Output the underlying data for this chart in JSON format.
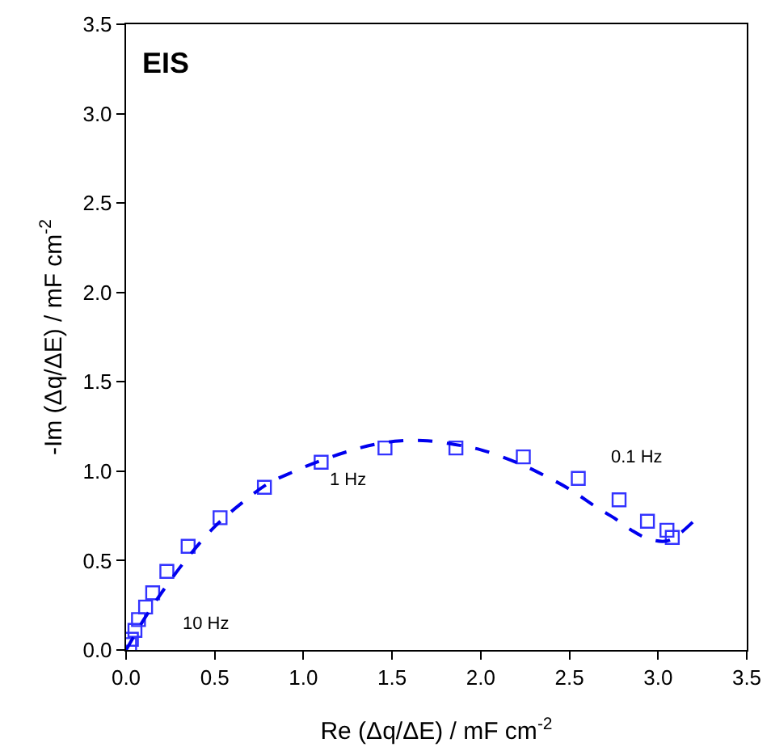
{
  "chart_data": {
    "type": "scatter",
    "title": "EIS",
    "xlabel": "Re (Δq/ΔE) / mF cm$^{-2}$",
    "ylabel": "-Im (Δq/ΔE) / mF cm$^{-2}$",
    "xlim": [
      0,
      3.5
    ],
    "ylim": [
      0,
      3.5
    ],
    "xticks": [
      {
        "value": 0,
        "label": "0.0"
      },
      0.5,
      {
        "value": 1,
        "label": "1.0"
      },
      1.5,
      {
        "value": 2,
        "label": "2.0"
      },
      2.5,
      {
        "value": 3,
        "label": "3.0"
      },
      3.5
    ],
    "yticks": [
      {
        "value": 0,
        "label": "0.0"
      },
      0.5,
      {
        "value": 1,
        "label": "1.0"
      },
      1.5,
      {
        "value": 2,
        "label": "2.0"
      },
      2.5,
      {
        "value": 3,
        "label": "3.0"
      },
      3.5
    ],
    "grid": false,
    "legend": false,
    "series": [
      {
        "marker": "square",
        "color": "#3333ff",
        "x": [
          0.02,
          0.03,
          0.05,
          0.07,
          0.11,
          0.15,
          0.23,
          0.35,
          0.53,
          0.78,
          1.1,
          1.46,
          1.86,
          2.24,
          2.55,
          2.78,
          2.94,
          3.05,
          3.08
        ],
        "values": [
          0.03,
          0.06,
          0.11,
          0.17,
          0.24,
          0.32,
          0.44,
          0.58,
          0.74,
          0.91,
          1.05,
          1.13,
          1.13,
          1.08,
          0.96,
          0.84,
          0.72,
          0.67,
          0.63
        ]
      },
      {
        "type": "line",
        "line_style": "dashed",
        "color": "#0000ee",
        "x": [
          0,
          0.1,
          0.2,
          0.35,
          0.5,
          0.65,
          0.8,
          0.95,
          1.1,
          1.25,
          1.4,
          1.55,
          1.7,
          1.85,
          2.0,
          2.2,
          2.35,
          2.5,
          2.65,
          2.75,
          2.85,
          2.95,
          3.05,
          3.12,
          3.2
        ],
        "values": [
          0,
          0.17,
          0.32,
          0.52,
          0.69,
          0.82,
          0.93,
          1.0,
          1.06,
          1.11,
          1.15,
          1.17,
          1.17,
          1.15,
          1.12,
          1.05,
          0.98,
          0.9,
          0.8,
          0.74,
          0.67,
          0.62,
          0.61,
          0.65,
          0.72
        ]
      }
    ],
    "annotations": [
      "10 Hz",
      "1 Hz",
      "0.1 Hz"
    ]
  }
}
